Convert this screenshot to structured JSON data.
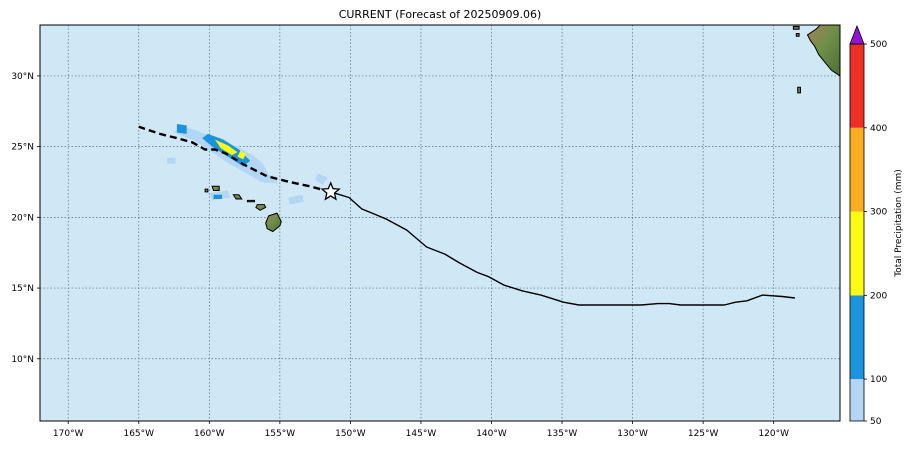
{
  "title": "CURRENT (Forecast of 20250909.06)",
  "x_axis": {
    "ticks": [
      "170°W",
      "165°W",
      "160°W",
      "155°W",
      "150°W",
      "145°W",
      "140°W",
      "135°W",
      "130°W",
      "125°W",
      "120°W"
    ],
    "values": [
      -170,
      -165,
      -160,
      -155,
      -150,
      -145,
      -140,
      -135,
      -130,
      -125,
      -120
    ]
  },
  "y_axis": {
    "ticks": [
      "10°N",
      "15°N",
      "20°N",
      "25°N",
      "30°N"
    ],
    "values": [
      10,
      15,
      20,
      25,
      30
    ]
  },
  "map": {
    "lon_range": [
      -172,
      -115.3
    ],
    "lat_range": [
      5.6,
      33.6
    ],
    "ocean_color": "#d0e7f6",
    "grid": "dotted"
  },
  "colorbar": {
    "label": "Total Precipitation (mm)",
    "ticks": [
      "50",
      "100",
      "200",
      "300",
      "400",
      "500"
    ],
    "bins": [
      {
        "from": 50,
        "to": 100,
        "color": "#b3d6f4"
      },
      {
        "from": 100,
        "to": 200,
        "color": "#1b93dd"
      },
      {
        "from": 200,
        "to": 300,
        "color": "#fbfb13"
      },
      {
        "from": 300,
        "to": 400,
        "color": "#f9ad21"
      },
      {
        "from": 400,
        "to": 500,
        "color": "#ee3024"
      }
    ],
    "extend_color": "#9413d6"
  },
  "track": {
    "past": [
      [
        -151.4,
        21.8
      ],
      [
        -150.1,
        21.4
      ],
      [
        -149.2,
        20.6
      ],
      [
        -147.5,
        19.9
      ],
      [
        -146.0,
        19.1
      ],
      [
        -144.6,
        17.9
      ],
      [
        -143.3,
        17.4
      ],
      [
        -142.3,
        16.8
      ],
      [
        -141.0,
        16.1
      ],
      [
        -140.2,
        15.8
      ],
      [
        -139.1,
        15.2
      ],
      [
        -137.8,
        14.8
      ],
      [
        -136.5,
        14.5
      ],
      [
        -134.9,
        14.0
      ],
      [
        -133.8,
        13.8
      ],
      [
        -132.9,
        13.8
      ],
      [
        -131.2,
        13.8
      ],
      [
        -129.4,
        13.8
      ],
      [
        -128.2,
        13.9
      ],
      [
        -127.4,
        13.9
      ],
      [
        -126.6,
        13.8
      ],
      [
        -125.3,
        13.8
      ],
      [
        -124.5,
        13.8
      ],
      [
        -123.5,
        13.8
      ],
      [
        -122.7,
        14.0
      ],
      [
        -121.9,
        14.1
      ],
      [
        -120.8,
        14.5
      ],
      [
        -119.4,
        14.4
      ],
      [
        -118.5,
        14.3
      ]
    ],
    "forecast": [
      [
        -151.4,
        21.8
      ],
      [
        -152.9,
        22.2
      ],
      [
        -154.3,
        22.5
      ],
      [
        -155.9,
        22.9
      ],
      [
        -157.5,
        23.7
      ],
      [
        -158.8,
        24.5
      ],
      [
        -159.6,
        24.8
      ],
      [
        -160.3,
        24.8
      ],
      [
        -161.2,
        25.3
      ],
      [
        -162.3,
        25.6
      ],
      [
        -163.5,
        25.9
      ],
      [
        -165.0,
        26.4
      ]
    ],
    "current_position": [
      -151.4,
      21.8
    ]
  },
  "islands": [
    {
      "name": "big-island",
      "points": [
        [
          -155.8,
          20.1
        ],
        [
          -155.2,
          20.3
        ],
        [
          -154.9,
          19.7
        ],
        [
          -155.0,
          19.4
        ],
        [
          -155.5,
          19.0
        ],
        [
          -155.9,
          19.2
        ],
        [
          -156.0,
          19.6
        ]
      ]
    },
    {
      "name": "maui",
      "points": [
        [
          -156.6,
          20.9
        ],
        [
          -156.1,
          20.9
        ],
        [
          -156.0,
          20.7
        ],
        [
          -156.4,
          20.5
        ],
        [
          -156.7,
          20.7
        ]
      ]
    },
    {
      "name": "molokai",
      "points": [
        [
          -157.3,
          21.2
        ],
        [
          -156.8,
          21.2
        ],
        [
          -156.8,
          21.1
        ],
        [
          -157.3,
          21.1
        ]
      ]
    },
    {
      "name": "oahu",
      "points": [
        [
          -158.3,
          21.6
        ],
        [
          -157.9,
          21.6
        ],
        [
          -157.7,
          21.3
        ],
        [
          -158.1,
          21.3
        ]
      ]
    },
    {
      "name": "kauai",
      "points": [
        [
          -159.8,
          22.2
        ],
        [
          -159.3,
          22.2
        ],
        [
          -159.3,
          21.9
        ],
        [
          -159.7,
          21.9
        ]
      ]
    },
    {
      "name": "niihau",
      "points": [
        [
          -160.3,
          22.0
        ],
        [
          -160.1,
          22.0
        ],
        [
          -160.1,
          21.8
        ],
        [
          -160.3,
          21.8
        ]
      ]
    }
  ],
  "rain_patches": [
    {
      "color": "#b3d6f4",
      "points": [
        [
          -160.8,
          26.1
        ],
        [
          -159.5,
          25.6
        ],
        [
          -158.0,
          25.0
        ],
        [
          -156.8,
          24.3
        ],
        [
          -156.2,
          23.8
        ],
        [
          -155.8,
          23.0
        ],
        [
          -156.5,
          22.6
        ],
        [
          -157.5,
          23.2
        ],
        [
          -158.6,
          23.8
        ],
        [
          -159.8,
          24.6
        ],
        [
          -161.0,
          25.4
        ],
        [
          -162.5,
          26.0
        ],
        [
          -162.0,
          26.5
        ]
      ]
    },
    {
      "color": "#1b93dd",
      "points": [
        [
          -160.1,
          25.9
        ],
        [
          -159.0,
          25.5
        ],
        [
          -157.9,
          24.8
        ],
        [
          -157.1,
          24.0
        ],
        [
          -157.6,
          23.6
        ],
        [
          -158.7,
          24.3
        ],
        [
          -159.8,
          25.0
        ],
        [
          -160.5,
          25.6
        ]
      ]
    },
    {
      "color": "#fbfb13",
      "points": [
        [
          -159.6,
          25.5
        ],
        [
          -158.7,
          25.1
        ],
        [
          -158.0,
          24.6
        ],
        [
          -158.4,
          24.4
        ],
        [
          -159.2,
          24.9
        ]
      ]
    },
    {
      "color": "#fbfb13",
      "points": [
        [
          -157.8,
          24.7
        ],
        [
          -157.4,
          24.5
        ],
        [
          -157.6,
          24.1
        ],
        [
          -158.0,
          24.3
        ]
      ]
    },
    {
      "color": "#1b93dd",
      "points": [
        [
          -162.3,
          26.6
        ],
        [
          -161.6,
          26.5
        ],
        [
          -161.6,
          25.9
        ],
        [
          -162.3,
          26.0
        ]
      ]
    },
    {
      "color": "#b3d6f4",
      "points": [
        [
          -160.0,
          21.7
        ],
        [
          -158.7,
          21.9
        ],
        [
          -158.5,
          21.4
        ],
        [
          -159.8,
          21.2
        ]
      ]
    },
    {
      "color": "#1b93dd",
      "points": [
        [
          -159.7,
          21.6
        ],
        [
          -159.1,
          21.6
        ],
        [
          -159.1,
          21.3
        ],
        [
          -159.7,
          21.3
        ]
      ]
    },
    {
      "color": "#b3d6f4",
      "points": [
        [
          -156.5,
          23.1
        ],
        [
          -155.3,
          22.9
        ],
        [
          -155.2,
          22.4
        ],
        [
          -156.4,
          22.5
        ]
      ]
    },
    {
      "color": "#b3d6f4",
      "points": [
        [
          -154.4,
          21.4
        ],
        [
          -153.4,
          21.6
        ],
        [
          -153.3,
          21.1
        ],
        [
          -154.3,
          20.9
        ]
      ]
    },
    {
      "color": "#b3d6f4",
      "points": [
        [
          -152.3,
          23.1
        ],
        [
          -151.6,
          22.8
        ],
        [
          -152.0,
          22.3
        ],
        [
          -152.5,
          22.7
        ]
      ]
    },
    {
      "color": "#b3d6f4",
      "points": [
        [
          -163.0,
          24.2
        ],
        [
          -162.4,
          24.2
        ],
        [
          -162.4,
          23.8
        ],
        [
          -163.0,
          23.8
        ]
      ]
    }
  ],
  "california": {
    "points": [
      [
        -115.3,
        33.6
      ],
      [
        -116.7,
        33.6
      ],
      [
        -117.0,
        33.3
      ],
      [
        -117.6,
        32.9
      ],
      [
        -117.4,
        32.5
      ],
      [
        -117.1,
        32.1
      ],
      [
        -116.8,
        31.5
      ],
      [
        -116.4,
        31.0
      ],
      [
        -115.9,
        30.4
      ],
      [
        -115.3,
        30.0
      ]
    ],
    "islands": [
      [
        [
          -118.6,
          33.5
        ],
        [
          -118.2,
          33.5
        ],
        [
          -118.2,
          33.3
        ],
        [
          -118.6,
          33.3
        ]
      ],
      [
        [
          -118.4,
          33.0
        ],
        [
          -118.2,
          33.0
        ],
        [
          -118.2,
          32.8
        ],
        [
          -118.4,
          32.8
        ]
      ],
      [
        [
          -118.3,
          29.2
        ],
        [
          -118.1,
          29.2
        ],
        [
          -118.1,
          28.8
        ],
        [
          -118.3,
          28.8
        ]
      ]
    ]
  }
}
